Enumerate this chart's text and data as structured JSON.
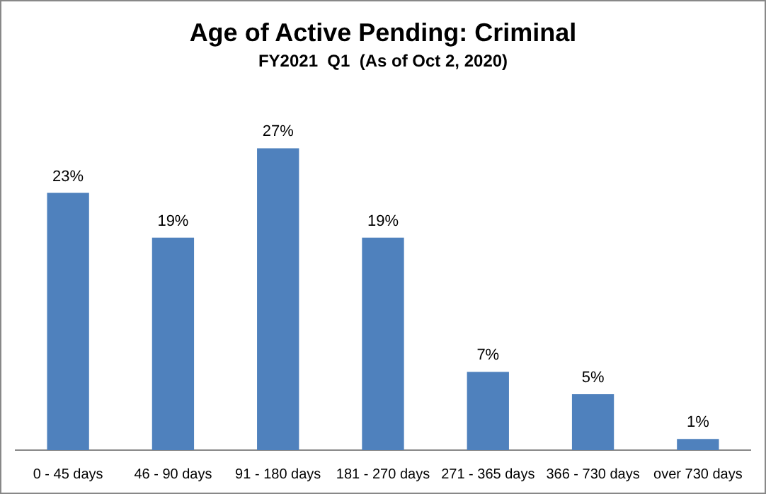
{
  "chart_data": {
    "type": "bar",
    "title": "Age of Active Pending: Criminal",
    "subtitle": "FY2021  Q1  (As of Oct 2, 2020)",
    "categories": [
      "0 - 45 days",
      "46 - 90 days",
      "91 - 180 days",
      "181 - 270 days",
      "271 - 365 days",
      "366 - 730 days",
      "over 730 days"
    ],
    "values": [
      23,
      19,
      27,
      19,
      7,
      5,
      1
    ],
    "value_labels": [
      "23%",
      "19%",
      "27%",
      "19%",
      "7%",
      "5%",
      "1%"
    ],
    "color": "#4f81bd"
  }
}
